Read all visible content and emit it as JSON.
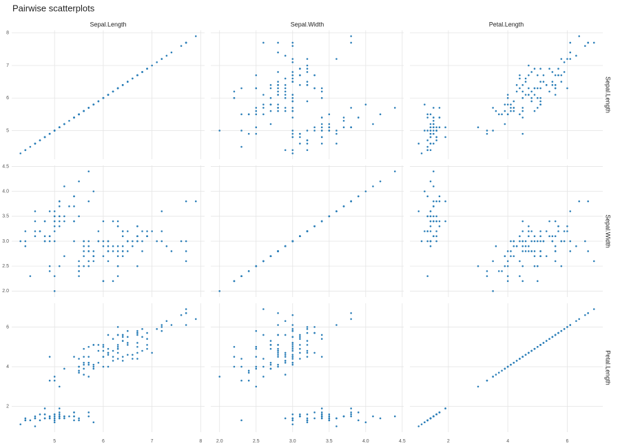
{
  "chart_data": {
    "type": "scatter_matrix",
    "title": "Pairwise scatterplots",
    "color": "#2c7fb8",
    "grid": true,
    "variables": [
      {
        "name": "Sepal.Length",
        "lim": [
          4.12,
          8.08
        ],
        "ticks": [
          5,
          6,
          7,
          8
        ],
        "values": [
          5.1,
          4.9,
          4.7,
          4.6,
          5.0,
          5.4,
          4.6,
          5.0,
          4.4,
          4.9,
          5.4,
          4.8,
          4.8,
          4.3,
          5.8,
          5.7,
          5.4,
          5.1,
          5.7,
          5.1,
          5.4,
          5.1,
          4.6,
          5.1,
          4.8,
          5.0,
          5.0,
          5.2,
          5.2,
          4.7,
          4.8,
          5.4,
          5.2,
          5.5,
          4.9,
          5.0,
          5.5,
          4.9,
          4.4,
          5.1,
          5.0,
          4.5,
          4.4,
          5.0,
          5.1,
          4.8,
          5.1,
          4.6,
          5.3,
          5.0,
          7.0,
          6.4,
          6.9,
          5.5,
          6.5,
          5.7,
          6.3,
          4.9,
          6.6,
          5.2,
          5.0,
          5.9,
          6.0,
          6.1,
          5.6,
          6.7,
          5.6,
          5.8,
          6.2,
          5.6,
          5.9,
          6.1,
          6.3,
          6.1,
          6.4,
          6.6,
          6.8,
          6.7,
          6.0,
          5.7,
          5.5,
          5.5,
          5.8,
          6.0,
          5.4,
          6.0,
          6.7,
          6.3,
          5.6,
          5.5,
          5.5,
          6.1,
          5.8,
          5.0,
          5.6,
          5.7,
          5.7,
          6.2,
          5.1,
          5.7,
          6.3,
          5.8,
          7.1,
          6.3,
          6.5,
          7.6,
          4.9,
          7.3,
          6.7,
          7.2,
          6.5,
          6.4,
          6.8,
          5.7,
          5.8,
          6.4,
          6.5,
          7.7,
          7.7,
          6.0,
          6.9,
          5.6,
          7.7,
          6.3,
          6.7,
          7.2,
          6.2,
          6.1,
          6.4,
          7.2,
          7.4,
          7.9,
          6.4,
          6.3,
          6.1,
          7.7,
          6.3,
          6.4,
          6.0,
          6.9,
          6.7,
          6.9,
          5.8,
          6.8,
          6.7,
          6.7,
          6.3,
          6.5,
          6.2,
          5.9
        ]
      },
      {
        "name": "Sepal.Width",
        "lim": [
          1.88,
          4.52
        ],
        "ticks": [
          {
            "value": 2,
            "label": "2.0"
          },
          2.5,
          {
            "value": 3,
            "label": "3.0"
          },
          3.5,
          {
            "value": 4,
            "label": "4.0"
          },
          4.5
        ],
        "values": [
          3.5,
          3.0,
          3.2,
          3.1,
          3.6,
          3.9,
          3.4,
          3.4,
          2.9,
          3.1,
          3.7,
          3.4,
          3.0,
          3.0,
          4.0,
          4.4,
          3.9,
          3.5,
          3.8,
          3.8,
          3.4,
          3.7,
          3.6,
          3.3,
          3.4,
          3.0,
          3.4,
          3.5,
          3.4,
          3.2,
          3.1,
          3.4,
          4.1,
          4.2,
          3.1,
          3.2,
          3.5,
          3.6,
          3.0,
          3.4,
          3.5,
          2.3,
          3.2,
          3.5,
          3.8,
          3.0,
          3.8,
          3.2,
          3.7,
          3.3,
          3.2,
          3.2,
          3.1,
          2.3,
          2.8,
          2.8,
          3.3,
          2.4,
          2.9,
          2.7,
          2.0,
          3.0,
          2.2,
          2.9,
          2.9,
          3.1,
          3.0,
          2.7,
          2.2,
          2.5,
          3.2,
          2.8,
          2.5,
          2.8,
          2.9,
          3.0,
          2.8,
          3.0,
          2.9,
          2.6,
          2.4,
          2.4,
          2.7,
          2.7,
          3.0,
          3.4,
          3.1,
          2.3,
          3.0,
          2.5,
          2.6,
          3.0,
          2.6,
          2.3,
          2.7,
          3.0,
          2.9,
          2.9,
          2.5,
          2.8,
          3.3,
          2.7,
          3.0,
          2.9,
          3.0,
          3.0,
          2.5,
          2.9,
          2.5,
          3.6,
          3.2,
          2.7,
          3.0,
          2.5,
          2.8,
          3.2,
          3.0,
          3.8,
          2.6,
          2.2,
          3.2,
          2.8,
          2.8,
          2.7,
          3.3,
          3.2,
          2.8,
          3.0,
          2.8,
          3.0,
          2.8,
          3.8,
          2.8,
          2.8,
          2.6,
          3.0,
          3.4,
          3.1,
          3.0,
          3.1,
          3.1,
          3.1,
          2.7,
          3.2,
          3.3,
          3.0,
          2.5,
          3.0,
          3.4,
          3.0
        ]
      },
      {
        "name": "Petal.Length",
        "lim": [
          0.705,
          7.195
        ],
        "ticks": [
          2,
          4,
          6
        ],
        "values": [
          1.4,
          1.4,
          1.3,
          1.5,
          1.4,
          1.7,
          1.4,
          1.5,
          1.4,
          1.5,
          1.5,
          1.6,
          1.4,
          1.1,
          1.2,
          1.5,
          1.3,
          1.4,
          1.7,
          1.5,
          1.7,
          1.5,
          1.0,
          1.7,
          1.9,
          1.6,
          1.6,
          1.5,
          1.4,
          1.6,
          1.6,
          1.5,
          1.5,
          1.4,
          1.5,
          1.2,
          1.3,
          1.4,
          1.3,
          1.5,
          1.3,
          1.3,
          1.3,
          1.6,
          1.9,
          1.4,
          1.6,
          1.4,
          1.5,
          1.4,
          4.7,
          4.5,
          4.9,
          4.0,
          4.6,
          4.5,
          4.7,
          3.3,
          4.6,
          3.9,
          3.5,
          4.2,
          4.0,
          4.7,
          3.6,
          4.4,
          4.5,
          4.1,
          4.5,
          3.9,
          4.8,
          4.0,
          4.9,
          4.7,
          4.3,
          4.4,
          4.8,
          5.0,
          4.5,
          3.5,
          3.8,
          3.7,
          3.9,
          5.1,
          4.5,
          4.5,
          4.7,
          4.4,
          4.1,
          4.0,
          4.4,
          4.6,
          4.0,
          3.3,
          4.2,
          4.2,
          4.2,
          4.3,
          3.0,
          4.1,
          6.0,
          5.1,
          5.9,
          5.6,
          5.8,
          6.6,
          4.5,
          6.3,
          5.8,
          6.1,
          5.1,
          5.3,
          5.5,
          5.0,
          5.1,
          5.3,
          5.5,
          6.7,
          6.9,
          5.0,
          5.7,
          4.9,
          6.7,
          4.9,
          5.7,
          6.0,
          4.8,
          4.9,
          5.6,
          5.8,
          6.1,
          6.4,
          5.6,
          5.1,
          5.6,
          6.1,
          5.6,
          5.5,
          4.8,
          5.4,
          5.6,
          5.1,
          5.1,
          5.9,
          5.7,
          5.2,
          5.0,
          5.2,
          5.4,
          5.1
        ]
      }
    ]
  }
}
